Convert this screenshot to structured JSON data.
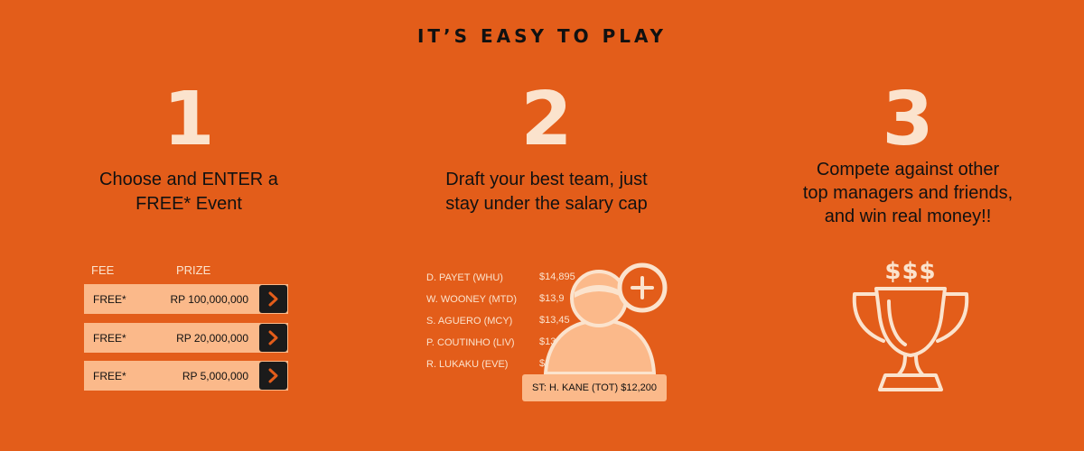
{
  "title": "IT’S EASY TO PLAY",
  "steps": [
    {
      "number": "1",
      "line1": "Choose and ENTER a",
      "line2": "FREE* Event"
    },
    {
      "number": "2",
      "line1": "Draft your best team, just",
      "line2": "stay under the salary cap"
    },
    {
      "number": "3",
      "line1": "Compete against other",
      "line2": "top managers and friends,",
      "line3": "and win real money!!"
    }
  ],
  "events": {
    "fee_header": "FEE",
    "prize_header": "PRIZE",
    "rows": [
      {
        "fee": "FREE*",
        "prize": "RP 100,000,000"
      },
      {
        "fee": "FREE*",
        "prize": "RP 20,000,000"
      },
      {
        "fee": "FREE*",
        "prize": "RP 5,000,000"
      }
    ]
  },
  "players": [
    {
      "name": "D. PAYET (WHU)",
      "salary": "$14,895"
    },
    {
      "name": "W. WOONEY (MTD)",
      "salary": "$13,9"
    },
    {
      "name": "S. AGUERO (MCY)",
      "salary": "$13,45"
    },
    {
      "name": "P. COUTINHO (LIV)",
      "salary": "$13,"
    },
    {
      "name": "R. LUKAKU (EVE)",
      "salary": "$"
    }
  ],
  "selected_player": "ST: H. KANE (TOT) $12,200",
  "dollar_signs": "$$$",
  "icons": {
    "arrow": "chevron-right-icon",
    "add_user": "add-user-icon",
    "trophy": "trophy-icon"
  },
  "colors": {
    "background": "#e35d1a",
    "accent_light": "#fbe3cd",
    "row_fill": "#fbb98a",
    "button": "#1b1b1b"
  }
}
